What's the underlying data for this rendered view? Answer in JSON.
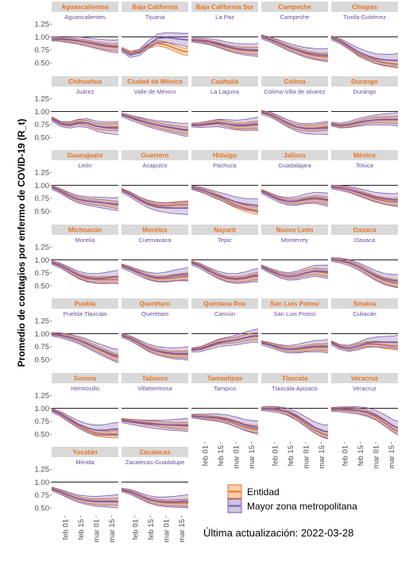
{
  "y_axis_label": "Promedio de contagios por enfermo de COVID-19 (R_t)",
  "update_text": "Última actualización: 2022-03-28",
  "legend": {
    "entity_label": "Entidad",
    "metro_label": "Mayor zona metropolitana"
  },
  "colors": {
    "entity": "#e8731e",
    "metro": "#7b5aa8",
    "state_title": "#e8731e",
    "metro_title": "#6a4c9c",
    "strip": "#d9d9d9",
    "reference_line": "#000000"
  },
  "chart_data": {
    "type": "line",
    "facet_columns": 5,
    "ylim": [
      0.35,
      1.3
    ],
    "y_ticks": [
      0.5,
      0.75,
      1.0,
      1.25
    ],
    "y_tick_labels": [
      "0.50",
      "0.75",
      "1.00",
      "1.25"
    ],
    "reference_line_y": 1.0,
    "x_ticks": [
      "feb 01",
      "feb 15",
      "mar 01",
      "mar 15"
    ],
    "x_range": [
      "2022-01-20",
      "2022-03-21"
    ],
    "x_tick_dates": [
      "2022-02-01",
      "2022-02-15",
      "2022-03-01",
      "2022-03-15"
    ],
    "series_names": [
      "Entidad",
      "Mayor zona metropolitana"
    ],
    "x_dates": [
      "2022-01-20",
      "2022-01-28",
      "2022-02-05",
      "2022-02-13",
      "2022-02-21",
      "2022-03-01",
      "2022-03-09",
      "2022-03-17",
      "2022-03-21"
    ],
    "panels": [
      {
        "state": "Aguascalientes",
        "metro": "Aguascalientes",
        "entity": [
          0.95,
          0.95,
          0.94,
          0.92,
          0.89,
          0.85,
          0.82,
          0.8,
          0.8
        ],
        "metro_values": [
          0.96,
          0.96,
          0.95,
          0.93,
          0.9,
          0.87,
          0.84,
          0.82,
          0.82
        ]
      },
      {
        "state": "Baja California",
        "metro": "Tijuana",
        "entity": [
          0.78,
          0.7,
          0.72,
          0.82,
          0.88,
          0.85,
          0.78,
          0.72,
          0.72
        ],
        "metro_values": [
          0.75,
          0.65,
          0.7,
          0.85,
          0.97,
          0.99,
          0.97,
          0.95,
          0.94
        ]
      },
      {
        "state": "Baja California Sur",
        "metro": "La Paz",
        "entity": [
          0.93,
          0.92,
          0.9,
          0.85,
          0.8,
          0.76,
          0.74,
          0.73,
          0.73
        ],
        "metro_values": [
          0.94,
          0.93,
          0.91,
          0.87,
          0.82,
          0.78,
          0.76,
          0.75,
          0.75
        ]
      },
      {
        "state": "Campeche",
        "metro": "Campeche",
        "entity": [
          1.02,
          0.96,
          0.88,
          0.8,
          0.74,
          0.68,
          0.64,
          0.62,
          0.62
        ],
        "metro_values": [
          1.0,
          0.95,
          0.88,
          0.81,
          0.75,
          0.7,
          0.67,
          0.65,
          0.65
        ]
      },
      {
        "state": "Chiapas",
        "metro": "Tuxtla Gutiérrez",
        "entity": [
          1.0,
          0.92,
          0.8,
          0.68,
          0.6,
          0.54,
          0.5,
          0.48,
          0.47
        ],
        "metro_values": [
          0.98,
          0.92,
          0.82,
          0.72,
          0.64,
          0.58,
          0.56,
          0.55,
          0.55
        ]
      },
      {
        "state": "Chihuahua",
        "metro": "Juárez",
        "entity": [
          0.88,
          0.78,
          0.75,
          0.8,
          0.78,
          0.72,
          0.7,
          0.7,
          0.7
        ],
        "metro_values": [
          0.85,
          0.76,
          0.74,
          0.78,
          0.78,
          0.72,
          0.69,
          0.68,
          0.68
        ]
      },
      {
        "state": "Ciudad de México",
        "metro": "Valle de México",
        "entity": [
          0.95,
          0.9,
          0.84,
          0.78,
          0.74,
          0.7,
          0.67,
          0.64,
          0.63
        ],
        "metro_values": [
          0.94,
          0.88,
          0.83,
          0.78,
          0.74,
          0.71,
          0.68,
          0.65,
          0.65
        ]
      },
      {
        "state": "Coahuila",
        "metro": "La Laguna",
        "entity": [
          0.75,
          0.75,
          0.78,
          0.8,
          0.76,
          0.72,
          0.72,
          0.74,
          0.74
        ],
        "metro_values": [
          0.74,
          0.74,
          0.76,
          0.78,
          0.76,
          0.74,
          0.74,
          0.76,
          0.76
        ]
      },
      {
        "state": "Colima",
        "metro": "Colima-Villa de alvarez",
        "entity": [
          1.0,
          0.95,
          0.86,
          0.76,
          0.7,
          0.68,
          0.68,
          0.7,
          0.71
        ],
        "metro_values": [
          0.98,
          0.94,
          0.86,
          0.77,
          0.7,
          0.67,
          0.67,
          0.68,
          0.68
        ]
      },
      {
        "state": "Durango",
        "metro": "Durango",
        "entity": [
          0.75,
          0.72,
          0.74,
          0.78,
          0.82,
          0.84,
          0.84,
          0.84,
          0.84
        ],
        "metro_values": [
          0.76,
          0.73,
          0.75,
          0.79,
          0.82,
          0.84,
          0.85,
          0.85,
          0.85
        ]
      },
      {
        "state": "Guanajuato",
        "metro": "León",
        "entity": [
          0.98,
          0.9,
          0.8,
          0.73,
          0.7,
          0.68,
          0.66,
          0.63,
          0.62
        ],
        "metro_values": [
          0.96,
          0.89,
          0.8,
          0.73,
          0.7,
          0.68,
          0.66,
          0.64,
          0.64
        ]
      },
      {
        "state": "Guerrero",
        "metro": "Acapulco",
        "entity": [
          0.92,
          0.84,
          0.74,
          0.66,
          0.62,
          0.61,
          0.62,
          0.63,
          0.63
        ],
        "metro_values": [
          0.9,
          0.82,
          0.72,
          0.64,
          0.59,
          0.57,
          0.56,
          0.56,
          0.56
        ]
      },
      {
        "state": "Hidalgo",
        "metro": "Pachuca",
        "entity": [
          0.96,
          0.92,
          0.86,
          0.78,
          0.7,
          0.62,
          0.56,
          0.52,
          0.51
        ],
        "metro_values": [
          0.96,
          0.92,
          0.86,
          0.8,
          0.74,
          0.68,
          0.64,
          0.62,
          0.61
        ]
      },
      {
        "state": "Jalisco",
        "metro": "Guadalajara",
        "entity": [
          0.9,
          0.82,
          0.74,
          0.69,
          0.69,
          0.72,
          0.74,
          0.72,
          0.7
        ],
        "metro_values": [
          0.88,
          0.8,
          0.73,
          0.69,
          0.7,
          0.74,
          0.76,
          0.74,
          0.72
        ]
      },
      {
        "state": "México",
        "metro": "Toluca",
        "entity": [
          0.98,
          0.96,
          0.92,
          0.86,
          0.8,
          0.74,
          0.7,
          0.68,
          0.68
        ],
        "metro_values": [
          0.97,
          0.95,
          0.92,
          0.87,
          0.82,
          0.77,
          0.74,
          0.72,
          0.72
        ]
      },
      {
        "state": "Michoacán",
        "metro": "Morelia",
        "entity": [
          0.96,
          0.9,
          0.8,
          0.7,
          0.64,
          0.62,
          0.62,
          0.62,
          0.62
        ],
        "metro_values": [
          0.95,
          0.89,
          0.8,
          0.71,
          0.66,
          0.64,
          0.65,
          0.67,
          0.67
        ]
      },
      {
        "state": "Morelos",
        "metro": "Cuernavaca",
        "entity": [
          0.9,
          0.84,
          0.76,
          0.68,
          0.64,
          0.64,
          0.66,
          0.68,
          0.68
        ],
        "metro_values": [
          0.88,
          0.82,
          0.75,
          0.69,
          0.66,
          0.67,
          0.7,
          0.72,
          0.72
        ]
      },
      {
        "state": "Nayarit",
        "metro": "Tepic",
        "entity": [
          0.96,
          0.9,
          0.8,
          0.7,
          0.64,
          0.62,
          0.64,
          0.68,
          0.69
        ],
        "metro_values": [
          0.94,
          0.88,
          0.79,
          0.71,
          0.66,
          0.64,
          0.66,
          0.7,
          0.71
        ]
      },
      {
        "state": "Nuevo León",
        "metro": "Monterrey",
        "entity": [
          0.88,
          0.8,
          0.72,
          0.68,
          0.7,
          0.75,
          0.78,
          0.76,
          0.75
        ],
        "metro_values": [
          0.87,
          0.79,
          0.72,
          0.68,
          0.7,
          0.75,
          0.79,
          0.78,
          0.77
        ]
      },
      {
        "state": "Oaxaca",
        "metro": "Oaxaca",
        "entity": [
          1.02,
          1.0,
          0.96,
          0.88,
          0.78,
          0.68,
          0.6,
          0.56,
          0.55
        ],
        "metro_values": [
          1.01,
          0.99,
          0.95,
          0.88,
          0.79,
          0.7,
          0.63,
          0.6,
          0.59
        ]
      },
      {
        "state": "Puebla",
        "metro": "Puebla-Tlaxcala",
        "entity": [
          1.0,
          0.98,
          0.94,
          0.88,
          0.8,
          0.72,
          0.64,
          0.56,
          0.54
        ],
        "metro_values": [
          0.99,
          0.97,
          0.93,
          0.88,
          0.81,
          0.73,
          0.66,
          0.59,
          0.57
        ]
      },
      {
        "state": "Querétaro",
        "metro": "Querétaro",
        "entity": [
          0.98,
          0.92,
          0.82,
          0.72,
          0.66,
          0.62,
          0.6,
          0.6,
          0.6
        ],
        "metro_values": [
          0.97,
          0.91,
          0.82,
          0.73,
          0.67,
          0.64,
          0.62,
          0.62,
          0.62
        ]
      },
      {
        "state": "Quintana Roo",
        "metro": "Cancún",
        "entity": [
          0.7,
          0.72,
          0.78,
          0.84,
          0.86,
          0.88,
          0.92,
          0.95,
          0.95
        ],
        "metro_values": [
          0.68,
          0.7,
          0.76,
          0.82,
          0.85,
          0.88,
          0.92,
          0.96,
          0.96
        ]
      },
      {
        "state": "San Luis Potosí",
        "metro": "San Luis Potosí",
        "entity": [
          0.84,
          0.8,
          0.74,
          0.7,
          0.7,
          0.72,
          0.74,
          0.74,
          0.74
        ],
        "metro_values": [
          0.82,
          0.78,
          0.73,
          0.7,
          0.71,
          0.74,
          0.76,
          0.76,
          0.76
        ]
      },
      {
        "state": "Sinaloa",
        "metro": "Culiacán",
        "entity": [
          0.84,
          0.76,
          0.72,
          0.76,
          0.8,
          0.8,
          0.78,
          0.76,
          0.76
        ],
        "metro_values": [
          0.82,
          0.74,
          0.72,
          0.76,
          0.82,
          0.84,
          0.84,
          0.84,
          0.84
        ]
      },
      {
        "state": "Sonora",
        "metro": "Hermosillo",
        "entity": [
          0.98,
          0.9,
          0.78,
          0.66,
          0.58,
          0.52,
          0.5,
          0.5,
          0.5
        ],
        "metro_values": [
          0.96,
          0.89,
          0.79,
          0.69,
          0.62,
          0.58,
          0.58,
          0.6,
          0.6
        ]
      },
      {
        "state": "Tabasco",
        "metro": "Villahermosa",
        "entity": [
          0.78,
          0.76,
          0.74,
          0.72,
          0.7,
          0.68,
          0.67,
          0.66,
          0.66
        ],
        "metro_values": [
          0.76,
          0.74,
          0.72,
          0.7,
          0.69,
          0.68,
          0.68,
          0.68,
          0.68
        ]
      },
      {
        "state": "Tamaulipas",
        "metro": "Tampico",
        "entity": [
          0.86,
          0.84,
          0.82,
          0.8,
          0.76,
          0.7,
          0.64,
          0.6,
          0.6
        ],
        "metro_values": [
          0.85,
          0.84,
          0.83,
          0.82,
          0.79,
          0.74,
          0.68,
          0.64,
          0.63
        ]
      },
      {
        "state": "Tlaxcala",
        "metro": "Tlaxcala-Apizaco",
        "entity": [
          1.0,
          1.0,
          0.98,
          0.92,
          0.82,
          0.7,
          0.58,
          0.5,
          0.48
        ],
        "metro_values": [
          0.99,
          0.99,
          0.97,
          0.93,
          0.85,
          0.74,
          0.63,
          0.56,
          0.55
        ]
      },
      {
        "state": "Veracruz",
        "metro": "Veracruz",
        "entity": [
          0.99,
          0.99,
          0.98,
          0.96,
          0.92,
          0.84,
          0.72,
          0.6,
          0.56
        ],
        "metro_values": [
          0.98,
          0.98,
          0.97,
          0.96,
          0.93,
          0.87,
          0.77,
          0.66,
          0.62
        ]
      },
      {
        "state": "Yucatán",
        "metro": "Mérida",
        "entity": [
          0.88,
          0.82,
          0.74,
          0.68,
          0.64,
          0.62,
          0.62,
          0.62,
          0.62
        ],
        "metro_values": [
          0.87,
          0.81,
          0.74,
          0.68,
          0.65,
          0.63,
          0.63,
          0.63,
          0.63
        ]
      },
      {
        "state": "Zacatecas",
        "metro": "Zacatecas-Guadalupe",
        "entity": [
          0.86,
          0.82,
          0.74,
          0.66,
          0.62,
          0.6,
          0.6,
          0.6,
          0.6
        ],
        "metro_values": [
          0.85,
          0.81,
          0.74,
          0.67,
          0.63,
          0.62,
          0.62,
          0.63,
          0.63
        ]
      }
    ]
  }
}
